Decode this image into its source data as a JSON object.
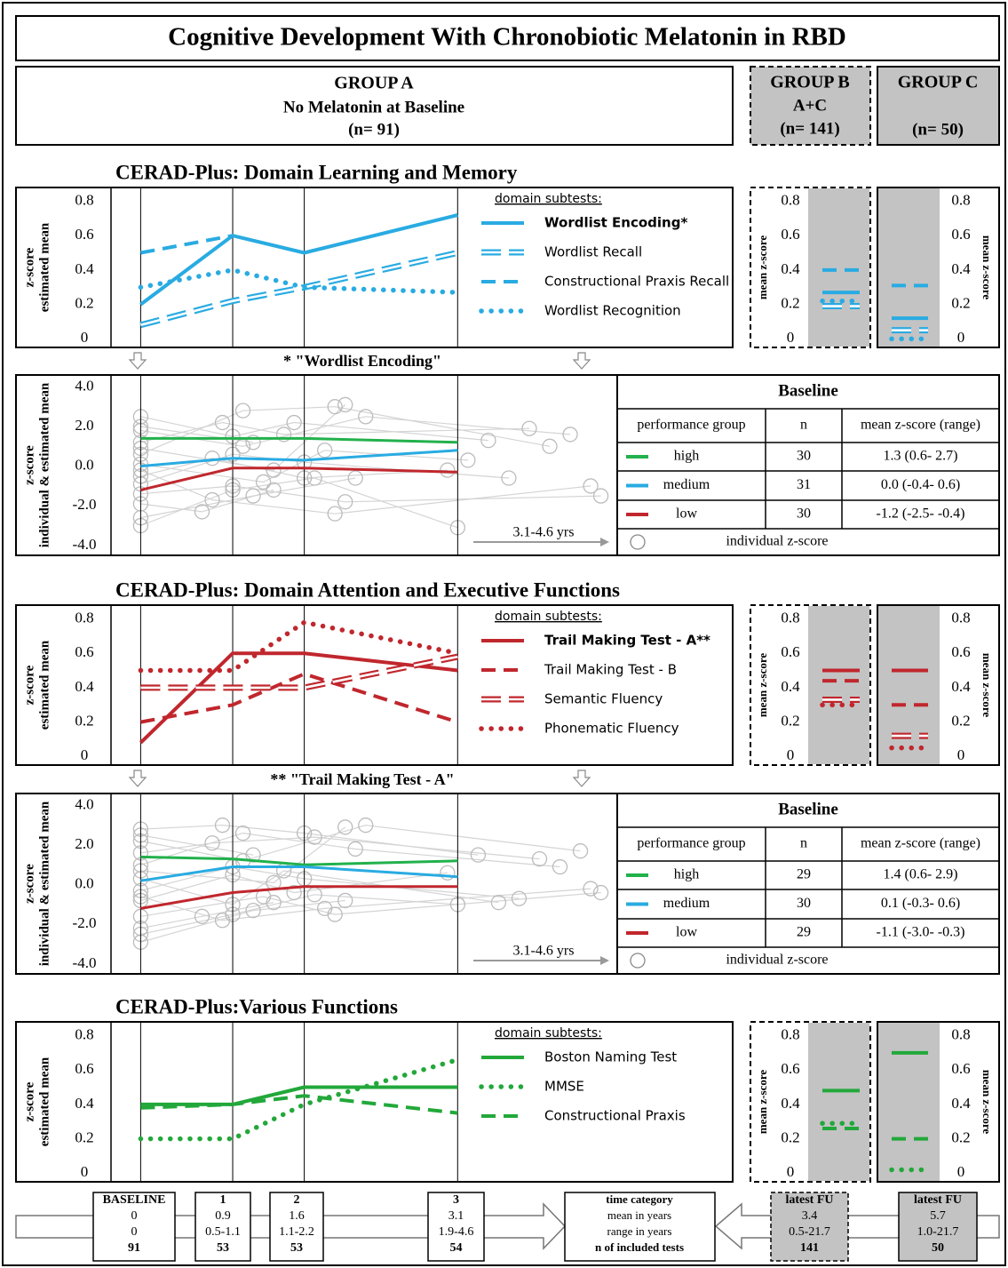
{
  "title": "Cognitive Development With Chronobiotic Melatonin in RBD",
  "groups": [
    {
      "name": "GROUP A",
      "subtitle": "No Melatonin at Baseline",
      "n": "(n= 91)"
    },
    {
      "name": "GROUP B",
      "subtitle": "A+C",
      "n": "(n= 141)"
    },
    {
      "name": "GROUP C",
      "n": "(n= 50)"
    }
  ],
  "chart_data": [
    {
      "type": "line",
      "title": "CERAD-Plus: Domain Learning and Memory",
      "ylabel": [
        "z-score",
        "estimated mean"
      ],
      "x": [
        0,
        0.9,
        1.6,
        3.1
      ],
      "xlim": [
        -0.29,
        5.79
      ],
      "ylim": [
        -0.05,
        0.88
      ],
      "yticks": [
        0,
        0.2,
        0.4,
        0.6,
        0.8
      ],
      "color": "#29abe2",
      "legend_title": "domain subtests:",
      "series": [
        {
          "name": "Wordlist Encoding*",
          "style": "solid",
          "emphasis": true,
          "values": [
            0.2,
            0.6,
            0.5,
            0.72
          ]
        },
        {
          "name": "Wordlist Recall",
          "style": "double",
          "values": [
            0.08,
            0.22,
            0.3,
            0.5
          ]
        },
        {
          "name": "Constructional Praxis Recall",
          "style": "dashed",
          "values": [
            0.5,
            0.6,
            null,
            null
          ]
        },
        {
          "name": "Wordlist Recognition",
          "style": "dotted",
          "values": [
            0.3,
            0.4,
            0.3,
            0.27
          ]
        }
      ]
    },
    {
      "type": "strip",
      "ylabel": "mean z-score",
      "ylim": [
        -0.05,
        0.88
      ],
      "yticks": [
        0,
        0.2,
        0.4,
        0.6,
        0.8
      ],
      "color": "#29abe2",
      "series": [
        {
          "style": "solid",
          "values": [
            0.27
          ]
        },
        {
          "style": "double",
          "values": [
            0.19
          ]
        },
        {
          "style": "dashed",
          "values": [
            0.4
          ]
        },
        {
          "style": "dotted",
          "values": [
            0.22
          ]
        }
      ]
    },
    {
      "type": "strip",
      "ylabel": "mean z-score",
      "ylim": [
        -0.05,
        0.88
      ],
      "yticks": [
        0,
        0.2,
        0.4,
        0.6,
        0.8
      ],
      "color": "#29abe2",
      "series": [
        {
          "style": "solid",
          "values": [
            0.12
          ]
        },
        {
          "style": "double",
          "values": [
            0.05
          ]
        },
        {
          "style": "dashed",
          "values": [
            0.31
          ]
        },
        {
          "style": "dotted",
          "values": [
            0
          ]
        }
      ]
    },
    {
      "type": "individual",
      "title": "* \"Wordlist Encoding\"",
      "ylabel": [
        "z-score",
        "individual & estimated mean"
      ],
      "x": [
        0,
        0.9,
        1.6,
        3.1
      ],
      "xlim": [
        -0.29,
        4.66
      ],
      "ylim": [
        -4.5,
        4.6
      ],
      "yticks": [
        {
          "value": 4,
          "label": "4.0"
        },
        {
          "value": 2,
          "label": "2.0"
        },
        {
          "value": 0,
          "label": "0.0"
        },
        {
          "value": -2,
          "label": "-2.0"
        },
        {
          "value": -4,
          "label": "-4.0"
        }
      ],
      "span_label": "3.1-4.6 yrs",
      "series": [
        {
          "name": "high",
          "color": "#22b14c",
          "values": [
            1.4,
            1.4,
            1.4,
            1.2
          ]
        },
        {
          "name": "medium",
          "color": "#29abe2",
          "values": [
            0.0,
            0.4,
            0.3,
            0.8
          ]
        },
        {
          "name": "low",
          "color": "#c0272d",
          "values": [
            -1.2,
            -0.1,
            -0.1,
            -0.3
          ]
        }
      ],
      "individuals": [
        {
          "x": [
            0,
            0.9,
            1.5,
            3.4
          ],
          "y": [
            2.5,
            1.5,
            2.2,
            1.3
          ]
        },
        {
          "x": [
            0,
            1.0,
            1.9,
            4.0
          ],
          "y": [
            0.6,
            2.8,
            3.0,
            1.0
          ]
        },
        {
          "x": [
            0,
            0.7,
            1.6,
            3.0
          ],
          "y": [
            -0.5,
            0.4,
            -0.6,
            -0.2
          ]
        },
        {
          "x": [
            0,
            1.1,
            2.1
          ],
          "y": [
            -2.6,
            -1.5,
            -0.6
          ]
        },
        {
          "x": [
            0,
            0.8,
            1.4,
            3.8
          ],
          "y": [
            1.2,
            2.2,
            1.6,
            1.9
          ]
        },
        {
          "x": [
            0,
            0.9,
            2.0,
            4.5
          ],
          "y": [
            -1.4,
            -1.0,
            -1.8,
            -1.5
          ]
        },
        {
          "x": [
            0,
            1.2,
            1.8,
            3.2
          ],
          "y": [
            0.1,
            -0.8,
            0.8,
            0.3
          ]
        },
        {
          "x": [
            0,
            0.6,
            1.3
          ],
          "y": [
            -1.9,
            -2.3,
            -1.2
          ]
        },
        {
          "x": [
            0,
            1.0,
            2.2,
            4.2
          ],
          "y": [
            1.8,
            1.0,
            2.5,
            1.6
          ]
        },
        {
          "x": [
            0,
            0.9,
            1.6,
            3.6
          ],
          "y": [
            -0.9,
            0.6,
            0.2,
            -0.6
          ]
        },
        {
          "x": [
            0,
            1.1
          ],
          "y": [
            2.0,
            1.2
          ]
        },
        {
          "x": [
            0,
            0.7,
            1.9,
            4.4
          ],
          "y": [
            -0.2,
            -1.7,
            -2.4,
            -1.0
          ]
        },
        {
          "x": [
            0,
            1.3,
            2.0
          ],
          "y": [
            0.9,
            -0.2,
            3.1
          ]
        },
        {
          "x": [
            0,
            0.9,
            1.7,
            3.1
          ],
          "y": [
            -3.0,
            -1.2,
            -0.6,
            -3.1
          ]
        }
      ],
      "table": {
        "title": "Baseline",
        "columns": [
          "performance group",
          "n",
          "mean z-score (range)"
        ],
        "rows": [
          [
            30,
            "1.3 (0.6- 2.7)"
          ],
          [
            31,
            "0.0 (-0.4- 0.6)"
          ],
          [
            30,
            "-1.2 (-2.5- -0.4)"
          ]
        ],
        "footer": "individual z-score"
      }
    },
    {
      "type": "line",
      "title": "CERAD-Plus: Domain Attention and Executive Functions",
      "ylabel": [
        "z-score",
        "estimated mean"
      ],
      "x": [
        0,
        0.9,
        1.6,
        3.1
      ],
      "xlim": [
        -0.29,
        5.79
      ],
      "ylim": [
        -0.05,
        0.88
      ],
      "yticks": [
        0,
        0.2,
        0.4,
        0.6,
        0.8
      ],
      "color": "#c0272d",
      "legend_title": "domain subtests:",
      "series": [
        {
          "name": "Trail Making Test - A**",
          "style": "solid",
          "emphasis": true,
          "values": [
            0.08,
            0.6,
            0.6,
            0.5
          ]
        },
        {
          "name": "Trail Making Test - B",
          "style": "dashed",
          "values": [
            0.2,
            0.3,
            0.48,
            0.2
          ]
        },
        {
          "name": "Semantic Fluency",
          "style": "double",
          "values": [
            0.4,
            0.4,
            0.4,
            0.58
          ]
        },
        {
          "name": "Phonematic Fluency",
          "style": "dotted",
          "values": [
            0.5,
            0.5,
            0.78,
            0.6
          ]
        }
      ]
    },
    {
      "type": "strip",
      "ylabel": "mean z-score",
      "ylim": [
        -0.05,
        0.88
      ],
      "yticks": [
        0,
        0.2,
        0.4,
        0.6,
        0.8
      ],
      "color": "#c0272d",
      "series": [
        {
          "style": "solid",
          "values": [
            0.5
          ]
        },
        {
          "style": "dashed",
          "values": [
            0.44
          ]
        },
        {
          "style": "double",
          "values": [
            0.33
          ]
        },
        {
          "style": "dotted",
          "values": [
            0.3
          ]
        }
      ]
    },
    {
      "type": "strip",
      "ylabel": "mean z-score",
      "ylim": [
        -0.05,
        0.88
      ],
      "yticks": [
        0,
        0.2,
        0.4,
        0.6,
        0.8
      ],
      "color": "#c0272d",
      "series": [
        {
          "style": "solid",
          "values": [
            0.5
          ]
        },
        {
          "style": "dashed",
          "values": [
            0.3
          ]
        },
        {
          "style": "double",
          "values": [
            0.12
          ]
        },
        {
          "style": "dotted",
          "values": [
            0.05
          ]
        }
      ]
    },
    {
      "type": "individual",
      "title": "** \"Trail Making Test - A\"",
      "ylabel": [
        "z-score",
        "individual & estimated mean"
      ],
      "x": [
        0,
        0.9,
        1.6,
        3.1
      ],
      "xlim": [
        -0.29,
        4.66
      ],
      "ylim": [
        -4.5,
        4.6
      ],
      "yticks": [
        {
          "value": 4,
          "label": "4.0"
        },
        {
          "value": 2,
          "label": "2.0"
        },
        {
          "value": 0,
          "label": "0.0"
        },
        {
          "value": -2,
          "label": "-2.0"
        },
        {
          "value": -4,
          "label": "-4.0"
        }
      ],
      "span_label": "3.1-4.6 yrs",
      "series": [
        {
          "name": "high",
          "color": "#22b14c",
          "values": [
            1.4,
            1.3,
            1.0,
            1.2
          ]
        },
        {
          "name": "medium",
          "color": "#29abe2",
          "values": [
            0.2,
            0.9,
            0.9,
            0.4
          ]
        },
        {
          "name": "low",
          "color": "#c0272d",
          "values": [
            -1.2,
            -0.4,
            -0.1,
            -0.1
          ]
        }
      ],
      "individuals": [
        {
          "x": [
            0,
            0.8,
            1.6,
            3.3
          ],
          "y": [
            2.8,
            3.0,
            2.6,
            1.5
          ]
        },
        {
          "x": [
            0,
            1.0,
            2.1,
            4.1
          ],
          "y": [
            1.0,
            2.6,
            1.8,
            0.9
          ]
        },
        {
          "x": [
            0,
            0.9,
            1.5,
            3.0
          ],
          "y": [
            -0.8,
            0.5,
            -0.4,
            0.6
          ]
        },
        {
          "x": [
            0,
            1.1,
            2.0
          ],
          "y": [
            -2.9,
            -1.3,
            -0.8
          ]
        },
        {
          "x": [
            0,
            0.7,
            1.7,
            3.9
          ],
          "y": [
            1.6,
            2.1,
            2.4,
            1.3
          ]
        },
        {
          "x": [
            0,
            1.2,
            1.9,
            4.5
          ],
          "y": [
            -1.6,
            -0.6,
            -1.5,
            -0.4
          ]
        },
        {
          "x": [
            0,
            0.9,
            1.4,
            3.5
          ],
          "y": [
            0.3,
            -1.0,
            0.7,
            -0.9
          ]
        },
        {
          "x": [
            0,
            0.6,
            1.3
          ],
          "y": [
            -2.2,
            -1.6,
            -0.9
          ]
        },
        {
          "x": [
            0,
            1.0,
            2.2,
            4.3
          ],
          "y": [
            2.2,
            1.2,
            3.0,
            1.7
          ]
        },
        {
          "x": [
            0,
            0.9,
            1.6,
            3.7
          ],
          "y": [
            -0.3,
            0.9,
            0.3,
            -0.7
          ]
        },
        {
          "x": [
            0,
            1.1
          ],
          "y": [
            2.5,
            1.5
          ]
        },
        {
          "x": [
            0,
            0.8,
            1.8,
            4.4
          ],
          "y": [
            -0.6,
            -1.8,
            -1.2,
            -0.2
          ]
        },
        {
          "x": [
            0,
            1.3,
            2.0
          ],
          "y": [
            0.7,
            0.1,
            2.9
          ]
        },
        {
          "x": [
            0,
            0.9,
            1.7,
            3.1
          ],
          "y": [
            -2.5,
            -1.5,
            -0.5,
            -1.0
          ]
        }
      ],
      "table": {
        "title": "Baseline",
        "columns": [
          "performance group",
          "n",
          "mean z-score (range)"
        ],
        "rows": [
          [
            29,
            "1.4 (0.6- 2.9)"
          ],
          [
            30,
            "0.1 (-0.3- 0.6)"
          ],
          [
            29,
            "-1.1 (-3.0- -0.3)"
          ]
        ],
        "footer": "individual z-score"
      }
    },
    {
      "type": "line",
      "title": "CERAD-Plus:Various Functions",
      "ylabel": [
        "z-score",
        "estimated mean"
      ],
      "x": [
        0,
        0.9,
        1.6,
        3.1
      ],
      "xlim": [
        -0.29,
        5.79
      ],
      "ylim": [
        -0.05,
        0.88
      ],
      "yticks": [
        0,
        0.2,
        0.4,
        0.6,
        0.8
      ],
      "color": "#22a83a",
      "legend_title": "domain subtests:",
      "series": [
        {
          "name": "Boston Naming Test",
          "style": "solid",
          "values": [
            0.4,
            0.4,
            0.5,
            0.5
          ]
        },
        {
          "name": "MMSE",
          "style": "dotted",
          "values": [
            0.2,
            0.2,
            0.4,
            0.66
          ]
        },
        {
          "name": "Constructional Praxis",
          "style": "dashed",
          "values": [
            0.38,
            0.4,
            0.45,
            0.35
          ]
        }
      ]
    },
    {
      "type": "strip",
      "ylabel": "mean z-score",
      "ylim": [
        -0.05,
        0.88
      ],
      "yticks": [
        0,
        0.2,
        0.4,
        0.6,
        0.8
      ],
      "color": "#22a83a",
      "series": [
        {
          "style": "solid",
          "values": [
            0.48
          ]
        },
        {
          "style": "dotted",
          "values": [
            0.29
          ]
        },
        {
          "style": "dashed",
          "values": [
            0.26
          ]
        }
      ]
    },
    {
      "type": "strip",
      "ylabel": "mean z-score",
      "ylim": [
        -0.05,
        0.88
      ],
      "yticks": [
        0,
        0.2,
        0.4,
        0.6,
        0.8
      ],
      "color": "#22a83a",
      "series": [
        {
          "style": "solid",
          "values": [
            0.7
          ]
        },
        {
          "style": "dotted",
          "values": [
            0.02
          ]
        },
        {
          "style": "dashed",
          "values": [
            0.2
          ]
        }
      ]
    }
  ],
  "timeline": {
    "columns": [
      {
        "label": "BASELINE",
        "mean": 0,
        "range": "0",
        "n": 91
      },
      {
        "label": "1",
        "mean": 0.9,
        "range": "0.5-1.1",
        "n": 53
      },
      {
        "label": "2",
        "mean": 1.6,
        "range": "1.1-2.2",
        "n": 53
      },
      {
        "label": "3",
        "mean": 3.1,
        "range": "1.9-4.6",
        "n": 54
      },
      {
        "label": "latest FU",
        "mean": 3.4,
        "range": "0.5-21.7",
        "n": 141
      },
      {
        "label": "latest FU",
        "mean": 5.7,
        "range": "1.0-21.7",
        "n": 50
      }
    ],
    "legend": [
      "time category",
      "mean in years",
      "range in years",
      "n of included tests"
    ]
  }
}
